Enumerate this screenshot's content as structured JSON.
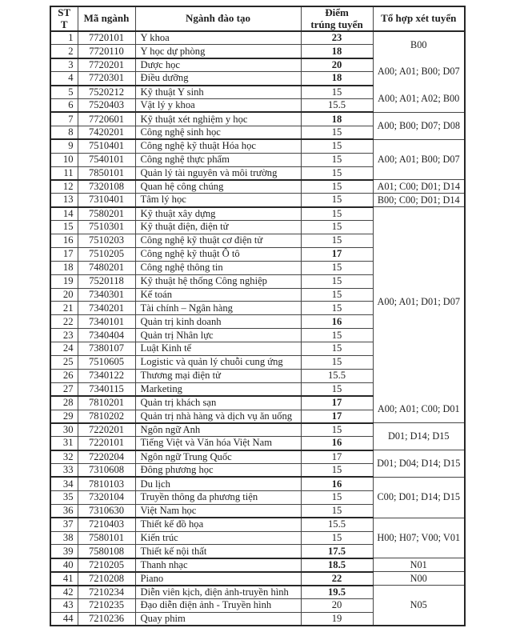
{
  "table": {
    "headers": {
      "stt": "ST\nT",
      "code": "Mã ngành",
      "major": "Ngành đào tạo",
      "score": "Điểm\ntrúng tuyển",
      "combo": "Tổ hợp xét tuyển"
    },
    "rows": [
      {
        "stt": "1",
        "code": "7720101",
        "major": "Y khoa",
        "score": "23",
        "bold": true
      },
      {
        "stt": "2",
        "code": "7720110",
        "major": "Y học dự phòng",
        "score": "18",
        "bold": true
      },
      {
        "stt": "3",
        "code": "7720201",
        "major": "Dược học",
        "score": "20",
        "bold": true
      },
      {
        "stt": "4",
        "code": "7720301",
        "major": "Điều dưỡng",
        "score": "18",
        "bold": true
      },
      {
        "stt": "5",
        "code": "7520212",
        "major": "Kỹ thuật Y sinh",
        "score": "15",
        "bold": false
      },
      {
        "stt": "6",
        "code": "7520403",
        "major": "Vật lý y khoa",
        "score": "15.5",
        "bold": false
      },
      {
        "stt": "7",
        "code": "7720601",
        "major": "Kỹ thuật xét nghiệm y học",
        "score": "18",
        "bold": true
      },
      {
        "stt": "8",
        "code": "7420201",
        "major": "Công nghệ sinh học",
        "score": "15",
        "bold": false
      },
      {
        "stt": "9",
        "code": "7510401",
        "major": "Công nghệ kỹ thuật Hóa học",
        "score": "15",
        "bold": false
      },
      {
        "stt": "10",
        "code": "7540101",
        "major": "Công nghệ thực phẩm",
        "score": "15",
        "bold": false
      },
      {
        "stt": "11",
        "code": "7850101",
        "major": "Quản lý tài nguyên và môi trường",
        "score": "15",
        "bold": false
      },
      {
        "stt": "12",
        "code": "7320108",
        "major": "Quan hệ công chúng",
        "score": "15",
        "bold": false
      },
      {
        "stt": "13",
        "code": "7310401",
        "major": "Tâm lý học",
        "score": "15",
        "bold": false
      },
      {
        "stt": "14",
        "code": "7580201",
        "major": "Kỹ thuật xây dựng",
        "score": "15",
        "bold": false
      },
      {
        "stt": "15",
        "code": "7510301",
        "major": "Kỹ thuật điện, điện tử",
        "score": "15",
        "bold": false
      },
      {
        "stt": "16",
        "code": "7510203",
        "major": "Công nghệ kỹ thuật cơ điện tử",
        "score": "15",
        "bold": false
      },
      {
        "stt": "17",
        "code": "7510205",
        "major": "Công nghệ kỹ thuật Ô tô",
        "score": "17",
        "bold": true
      },
      {
        "stt": "18",
        "code": "7480201",
        "major": "Công nghệ thông tin",
        "score": "15",
        "bold": false
      },
      {
        "stt": "19",
        "code": "7520118",
        "major": "Kỹ thuật hệ thống Công nghiệp",
        "score": "15",
        "bold": false
      },
      {
        "stt": "20",
        "code": "7340301",
        "major": "Kế toán",
        "score": "15",
        "bold": false
      },
      {
        "stt": "21",
        "code": "7340201",
        "major": "Tài chính – Ngân hàng",
        "score": "15",
        "bold": false
      },
      {
        "stt": "22",
        "code": "7340101",
        "major": "Quản trị kinh doanh",
        "score": "16",
        "bold": true
      },
      {
        "stt": "23",
        "code": "7340404",
        "major": "Quản trị Nhân lực",
        "score": "15",
        "bold": false
      },
      {
        "stt": "24",
        "code": "7380107",
        "major": "Luật Kinh tế",
        "score": "15",
        "bold": false
      },
      {
        "stt": "25",
        "code": "7510605",
        "major": "Logistic và quản lý chuỗi cung ứng",
        "score": "15",
        "bold": false
      },
      {
        "stt": "26",
        "code": "7340122",
        "major": "Thương mại điện tử",
        "score": "15.5",
        "bold": false
      },
      {
        "stt": "27",
        "code": "7340115",
        "major": "Marketing",
        "score": "15",
        "bold": false
      },
      {
        "stt": "28",
        "code": "7810201",
        "major": "Quản trị khách sạn",
        "score": "17",
        "bold": true
      },
      {
        "stt": "29",
        "code": "7810202",
        "major": "Quản trị nhà hàng và dịch vụ ăn uống",
        "score": "17",
        "bold": true
      },
      {
        "stt": "30",
        "code": "7220201",
        "major": "Ngôn ngữ Anh",
        "score": "15",
        "bold": false
      },
      {
        "stt": "31",
        "code": "7220101",
        "major": "Tiếng Việt và Văn hóa Việt Nam",
        "score": "16",
        "bold": true
      },
      {
        "stt": "32",
        "code": "7220204",
        "major": "Ngôn ngữ Trung Quốc",
        "score": "17",
        "bold": false
      },
      {
        "stt": "33",
        "code": "7310608",
        "major": "Đông phương học",
        "score": "15",
        "bold": false
      },
      {
        "stt": "34",
        "code": "7810103",
        "major": "Du lịch",
        "score": "16",
        "bold": true
      },
      {
        "stt": "35",
        "code": "7320104",
        "major": "Truyền thông đa phương tiện",
        "score": "15",
        "bold": false
      },
      {
        "stt": "36",
        "code": "7310630",
        "major": "Việt Nam học",
        "score": "15",
        "bold": false
      },
      {
        "stt": "37",
        "code": "7210403",
        "major": "Thiết kế đồ họa",
        "score": "15.5",
        "bold": false
      },
      {
        "stt": "38",
        "code": "7580101",
        "major": "Kiến trúc",
        "score": "15",
        "bold": false
      },
      {
        "stt": "39",
        "code": "7580108",
        "major": "Thiết kế nội thất",
        "score": "17.5",
        "bold": true
      },
      {
        "stt": "40",
        "code": "7210205",
        "major": "Thanh nhạc",
        "score": "18.5",
        "bold": true
      },
      {
        "stt": "41",
        "code": "7210208",
        "major": "Piano",
        "score": "22",
        "bold": true
      },
      {
        "stt": "42",
        "code": "7210234",
        "major": "Diễn viên kịch, điện ảnh-truyền hình",
        "score": "19.5",
        "bold": true
      },
      {
        "stt": "43",
        "code": "7210235",
        "major": "Đạo diễn điện ảnh - Truyền hình",
        "score": "20",
        "bold": false
      },
      {
        "stt": "44",
        "code": "7210236",
        "major": "Quay phim",
        "score": "19",
        "bold": false
      }
    ],
    "combo_groups": [
      {
        "start": 1,
        "span": 2,
        "label": "B00",
        "divider": true,
        "thick": false
      },
      {
        "start": 3,
        "span": 2,
        "label": "A00; A01; B00; D07",
        "divider": false,
        "thick": true
      },
      {
        "start": 5,
        "span": 2,
        "label": "A00; A01; A02; B00",
        "divider": false,
        "thick": true
      },
      {
        "start": 7,
        "span": 2,
        "label": "A00; B00; D07; D08",
        "divider": true,
        "thick": true
      },
      {
        "start": 9,
        "span": 3,
        "label": "A00; A01; B00; D07",
        "divider": true,
        "thick": true
      },
      {
        "start": 12,
        "span": 1,
        "label": "A01; C00; D01; D14",
        "divider": true,
        "thick": true
      },
      {
        "start": 13,
        "span": 1,
        "label": "B00; C00; D01; D14",
        "divider": true,
        "thick": false
      },
      {
        "start": 14,
        "span": 14,
        "label": "A00; A01; D01; D07",
        "divider": true,
        "thick": true
      },
      {
        "start": 28,
        "span": 2,
        "label": "A00; A01; C00; D01",
        "divider": false,
        "thick": true
      },
      {
        "start": 30,
        "span": 2,
        "label": "D01; D14; D15",
        "divider": true,
        "thick": true
      },
      {
        "start": 32,
        "span": 2,
        "label": "D01; D04; D14; D15",
        "divider": true,
        "thick": true
      },
      {
        "start": 34,
        "span": 3,
        "label": "C00; D01; D14; D15",
        "divider": true,
        "thick": true
      },
      {
        "start": 37,
        "span": 3,
        "label": "H00; H07; V00; V01",
        "divider": true,
        "thick": true
      },
      {
        "start": 40,
        "span": 1,
        "label": "N01",
        "divider": true,
        "thick": true
      },
      {
        "start": 41,
        "span": 1,
        "label": "N00",
        "divider": true,
        "thick": true
      },
      {
        "start": 42,
        "span": 3,
        "label": "N05",
        "divider": true,
        "thick": true
      }
    ]
  },
  "colors": {
    "text": "#1f1f1f",
    "border_thin": "#454545",
    "border_thick": "#262626",
    "background": "#ffffff"
  }
}
